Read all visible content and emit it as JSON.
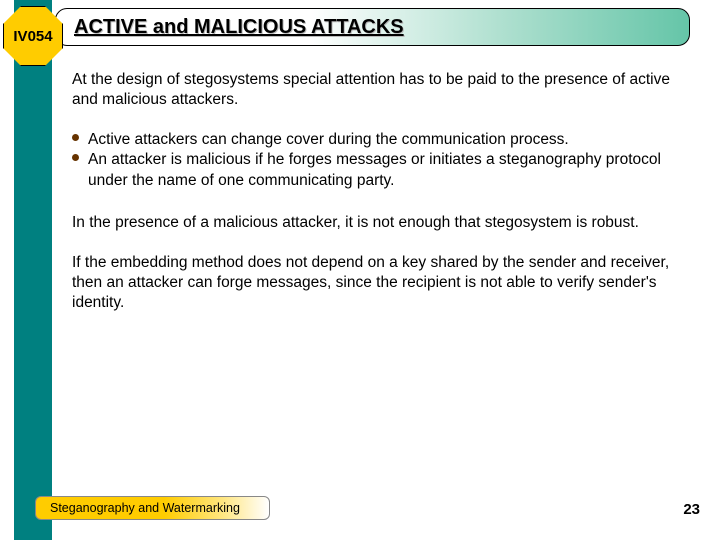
{
  "badge": {
    "label": "IV054"
  },
  "title": "ACTIVE and MALICIOUS ATTACKS",
  "intro": "At the design of stegosystems special attention has to be paid to the presence of active and malicious attackers.",
  "bullets": [
    "Active attackers can change cover during the communication process.",
    "An attacker is malicious if he forges messages or initiates a steganography protocol under the name of one communicating party."
  ],
  "para2": "In the presence of a malicious attacker, it is not enough that stegosystem is robust.",
  "para3": "If the embedding method does not depend on a key shared by the sender and receiver, then an attacker can forge messages, since the recipient is not able to verify sender's identity.",
  "footer": "Steganography and Watermarking",
  "page": "23",
  "colors": {
    "stripe": "#008080",
    "badge_bg": "#ffcc00",
    "bullet": "#663300",
    "footer_bg": "#ffcc00"
  }
}
